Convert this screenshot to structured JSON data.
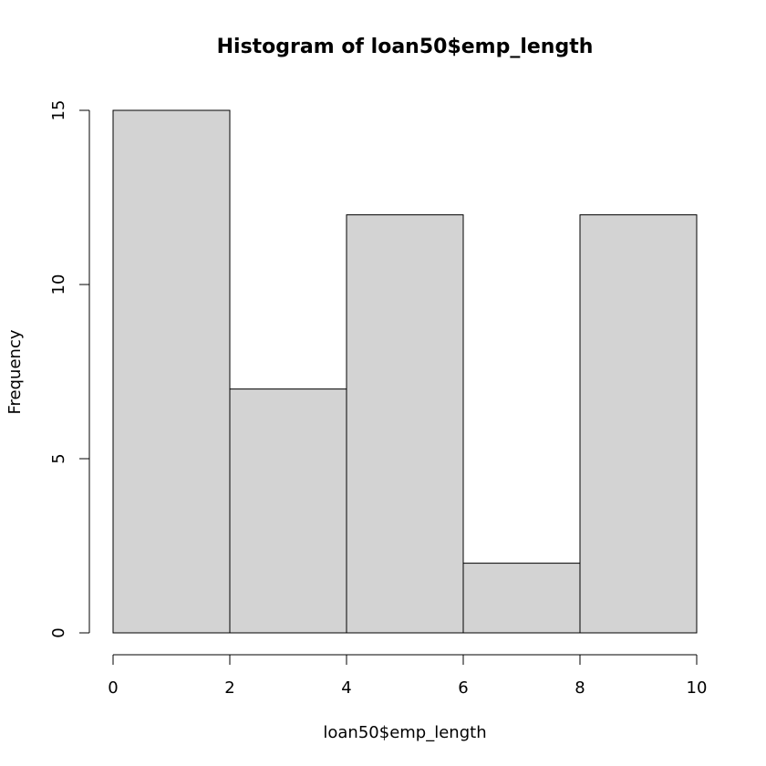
{
  "chart_data": {
    "type": "bar",
    "title": "Histogram of loan50$emp_length",
    "xlabel": "loan50$emp_length",
    "ylabel": "Frequency",
    "bins": [
      {
        "from": 0,
        "to": 2,
        "count": 15
      },
      {
        "from": 2,
        "to": 4,
        "count": 7
      },
      {
        "from": 4,
        "to": 6,
        "count": 12
      },
      {
        "from": 6,
        "to": 8,
        "count": 2
      },
      {
        "from": 8,
        "to": 10,
        "count": 12
      }
    ],
    "xlim": [
      0,
      10
    ],
    "ylim": [
      0,
      15
    ],
    "x_ticks": [
      "0",
      "2",
      "4",
      "6",
      "8",
      "10"
    ],
    "y_ticks": [
      "0",
      "5",
      "10",
      "15"
    ],
    "grid": false,
    "bar_fill": "#d3d3d3",
    "bar_stroke": "#000000"
  }
}
